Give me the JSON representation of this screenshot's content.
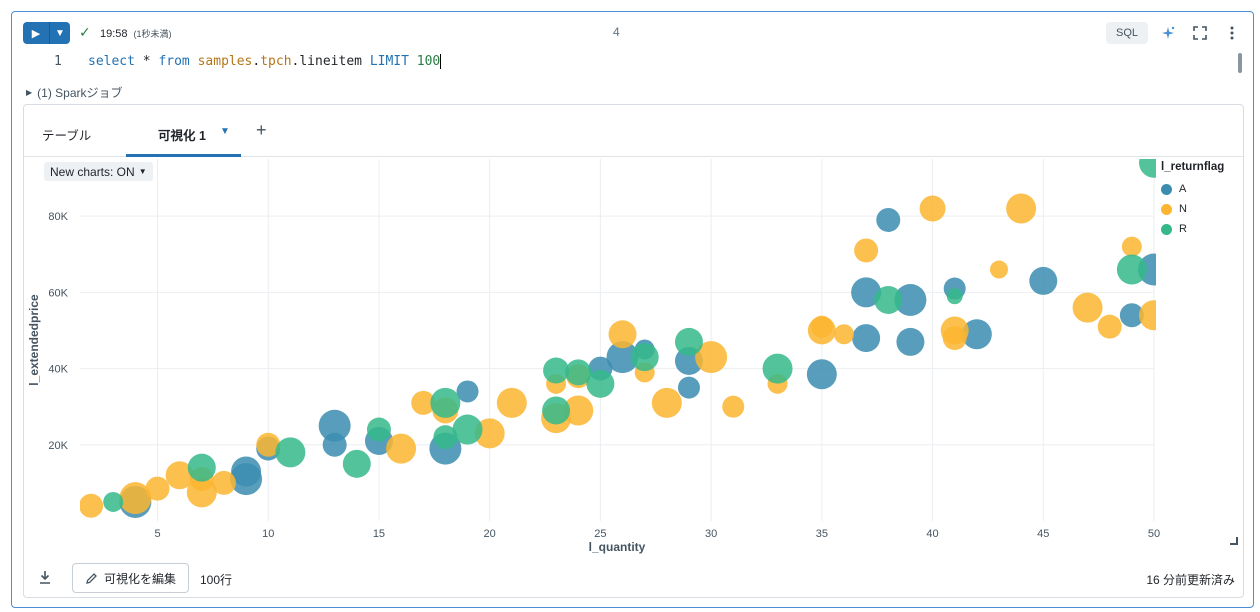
{
  "toolbar": {
    "run_icon": "play-icon",
    "status_time": "19:58",
    "status_duration": "(1秒未満)",
    "cell_number": "4",
    "language_badge": "SQL"
  },
  "code": {
    "line_number": "1",
    "tokens": [
      {
        "text": "select",
        "cls": "kw"
      },
      {
        "text": " * ",
        "cls": ""
      },
      {
        "text": "from",
        "cls": "kw"
      },
      {
        "text": " ",
        "cls": ""
      },
      {
        "text": "samples",
        "cls": "id"
      },
      {
        "text": ".",
        "cls": ""
      },
      {
        "text": "tpch",
        "cls": "id"
      },
      {
        "text": ".lineitem ",
        "cls": ""
      },
      {
        "text": "LIMIT",
        "cls": "kw"
      },
      {
        "text": " ",
        "cls": ""
      },
      {
        "text": "100",
        "cls": "num"
      }
    ]
  },
  "spark_jobs": "(1) Sparkジョブ",
  "tabs": {
    "table": "テーブル",
    "visualization": "可視化 1"
  },
  "new_charts": "New charts: ON",
  "legend": {
    "title": "l_returnflag",
    "items": [
      {
        "label": "A",
        "color": "#3b8db0"
      },
      {
        "label": "N",
        "color": "#fbb530"
      },
      {
        "label": "R",
        "color": "#35b88a"
      }
    ]
  },
  "bottom": {
    "edit_label": "可視化を編集",
    "rows": "100行",
    "updated": "16 分前更新済み"
  },
  "chart_data": {
    "type": "scatter",
    "xlabel": "l_quantity",
    "ylabel": "l_extendedprice",
    "xlim": [
      1.5,
      50
    ],
    "ylim": [
      0,
      95000
    ],
    "xticks": [
      5,
      10,
      15,
      20,
      25,
      30,
      35,
      40,
      45,
      50
    ],
    "yticks": [
      20000,
      40000,
      60000,
      80000
    ],
    "ytick_labels": [
      "20K",
      "40K",
      "60K",
      "80K"
    ],
    "grid": true,
    "legend_position": "right",
    "series": [
      {
        "name": "A",
        "color": "#3b8db0",
        "points": [
          [
            4,
            5000,
            16
          ],
          [
            9,
            11000,
            16
          ],
          [
            9,
            13000,
            15
          ],
          [
            10,
            19000,
            12
          ],
          [
            13,
            25000,
            16
          ],
          [
            13,
            20000,
            12
          ],
          [
            15,
            21000,
            14
          ],
          [
            18,
            19000,
            16
          ],
          [
            19,
            34000,
            11
          ],
          [
            25,
            40000,
            12
          ],
          [
            26,
            43000,
            16
          ],
          [
            27,
            45000,
            10
          ],
          [
            29,
            42000,
            14
          ],
          [
            29,
            35000,
            11
          ],
          [
            35,
            38500,
            15
          ],
          [
            37,
            60000,
            15
          ],
          [
            37,
            48000,
            14
          ],
          [
            38,
            79000,
            12
          ],
          [
            39,
            58000,
            16
          ],
          [
            39,
            47000,
            14
          ],
          [
            41,
            61000,
            11
          ],
          [
            42,
            49000,
            15
          ],
          [
            45,
            63000,
            14
          ],
          [
            49,
            54000,
            12
          ],
          [
            50,
            66000,
            16
          ]
        ]
      },
      {
        "name": "N",
        "color": "#fbb530",
        "points": [
          [
            2,
            4000,
            12
          ],
          [
            4,
            6000,
            16
          ],
          [
            5,
            8500,
            12
          ],
          [
            6,
            12000,
            14
          ],
          [
            7,
            7500,
            15
          ],
          [
            7,
            11000,
            12
          ],
          [
            8,
            10000,
            12
          ],
          [
            10,
            20000,
            12
          ],
          [
            16,
            19000,
            15
          ],
          [
            17,
            31000,
            12
          ],
          [
            18,
            29000,
            13
          ],
          [
            20,
            23000,
            15
          ],
          [
            21,
            31000,
            15
          ],
          [
            23,
            27000,
            15
          ],
          [
            23,
            36000,
            10
          ],
          [
            24,
            29000,
            15
          ],
          [
            24,
            38000,
            12
          ],
          [
            26,
            49000,
            14
          ],
          [
            27,
            39000,
            10
          ],
          [
            28,
            31000,
            15
          ],
          [
            30,
            43000,
            16
          ],
          [
            31,
            30000,
            11
          ],
          [
            33,
            36000,
            10
          ],
          [
            35,
            50000,
            14
          ],
          [
            35,
            51000,
            11
          ],
          [
            36,
            49000,
            10
          ],
          [
            37,
            71000,
            12
          ],
          [
            40,
            82000,
            13
          ],
          [
            41,
            50000,
            14
          ],
          [
            41,
            48000,
            12
          ],
          [
            43,
            66000,
            9
          ],
          [
            44,
            82000,
            15
          ],
          [
            47,
            56000,
            15
          ],
          [
            48,
            51000,
            12
          ],
          [
            49,
            72000,
            10
          ],
          [
            50,
            54000,
            15
          ]
        ]
      },
      {
        "name": "R",
        "color": "#35b88a",
        "points": [
          [
            3,
            5000,
            10
          ],
          [
            7,
            14000,
            14
          ],
          [
            11,
            18000,
            15
          ],
          [
            14,
            15000,
            14
          ],
          [
            15,
            24000,
            12
          ],
          [
            18,
            22000,
            12
          ],
          [
            18,
            31000,
            15
          ],
          [
            19,
            24000,
            15
          ],
          [
            23,
            39500,
            13
          ],
          [
            23,
            29000,
            14
          ],
          [
            24,
            39000,
            13
          ],
          [
            25,
            36000,
            14
          ],
          [
            27,
            43000,
            14
          ],
          [
            29,
            47000,
            14
          ],
          [
            33,
            40000,
            15
          ],
          [
            38,
            58000,
            14
          ],
          [
            41,
            59000,
            8
          ],
          [
            49,
            66000,
            15
          ],
          [
            50,
            94000,
            15
          ]
        ]
      }
    ]
  }
}
